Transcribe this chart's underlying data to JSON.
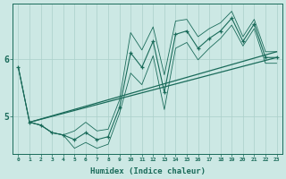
{
  "xlabel": "Humidex (Indice chaleur)",
  "ylabel": "",
  "background_color": "#cce8e4",
  "grid_color": "#aacfca",
  "line_color": "#1a6b5a",
  "x_data": [
    0,
    1,
    2,
    3,
    4,
    5,
    6,
    7,
    8,
    9,
    10,
    11,
    12,
    13,
    14,
    15,
    16,
    17,
    18,
    19,
    20,
    21,
    22,
    23
  ],
  "y_zigzag": [
    5.85,
    4.9,
    4.85,
    4.72,
    4.68,
    4.6,
    4.72,
    4.6,
    4.65,
    5.15,
    6.1,
    5.85,
    6.3,
    5.42,
    6.42,
    6.48,
    6.18,
    6.35,
    6.48,
    6.7,
    6.3,
    6.6,
    6.02,
    6.02
  ],
  "y_env_up": [
    5.85,
    4.9,
    4.85,
    4.72,
    4.68,
    4.45,
    4.55,
    4.45,
    4.52,
    5.05,
    5.75,
    5.55,
    6.05,
    5.12,
    6.18,
    6.28,
    5.98,
    6.18,
    6.35,
    6.58,
    6.22,
    6.52,
    5.92,
    5.92
  ],
  "y_env_low": [
    5.85,
    4.9,
    4.85,
    4.72,
    4.68,
    4.75,
    4.9,
    4.75,
    4.78,
    5.28,
    6.45,
    6.15,
    6.55,
    5.72,
    6.65,
    6.68,
    6.38,
    6.52,
    6.62,
    6.82,
    6.38,
    6.68,
    6.12,
    6.12
  ],
  "trend1_x": [
    1,
    23
  ],
  "trend1_y": [
    4.9,
    6.02
  ],
  "trend2_x": [
    1,
    23
  ],
  "trend2_y": [
    4.9,
    6.12
  ],
  "yticks": [
    5,
    6
  ],
  "xticks": [
    0,
    1,
    2,
    3,
    4,
    5,
    6,
    7,
    8,
    9,
    10,
    11,
    12,
    13,
    14,
    15,
    16,
    17,
    18,
    19,
    20,
    21,
    22,
    23
  ],
  "xlim": [
    -0.5,
    23.5
  ],
  "ylim": [
    4.35,
    6.95
  ]
}
